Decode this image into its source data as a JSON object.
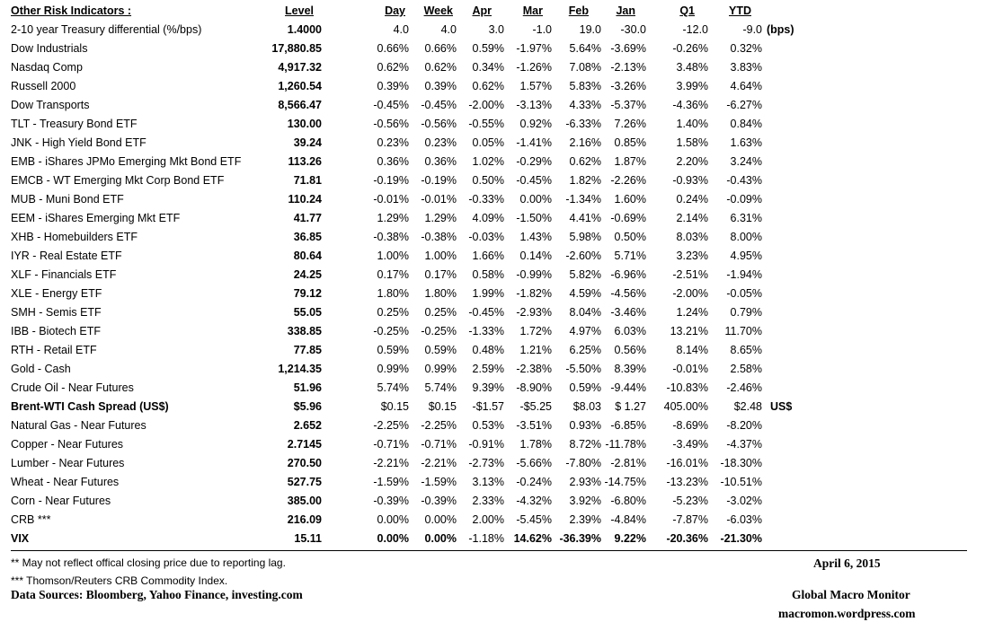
{
  "header": {
    "title": "Other Risk Indicators :",
    "columns": [
      "Level",
      "Day",
      "Week",
      "Apr",
      "Mar",
      "Feb",
      "Jan",
      "Q1",
      "YTD"
    ]
  },
  "rows": [
    {
      "label": "2-10 year Treasury differential (%/bps)",
      "values": [
        "1.4000",
        "4.0",
        "4.0",
        "3.0",
        "-1.0",
        "19.0",
        "-30.0",
        "-12.0",
        "-9.0"
      ],
      "unit": "(bps)"
    },
    {
      "label": "Dow Industrials",
      "values": [
        "17,880.85",
        "0.66%",
        "0.66%",
        "0.59%",
        "-1.97%",
        "5.64%",
        "-3.69%",
        "-0.26%",
        "0.32%"
      ]
    },
    {
      "label": "Nasdaq Comp",
      "values": [
        "4,917.32",
        "0.62%",
        "0.62%",
        "0.34%",
        "-1.26%",
        "7.08%",
        "-2.13%",
        "3.48%",
        "3.83%"
      ]
    },
    {
      "label": "Russell 2000",
      "values": [
        "1,260.54",
        "0.39%",
        "0.39%",
        "0.62%",
        "1.57%",
        "5.83%",
        "-3.26%",
        "3.99%",
        "4.64%"
      ]
    },
    {
      "label": "Dow Transports",
      "values": [
        "8,566.47",
        "-0.45%",
        "-0.45%",
        "-2.00%",
        "-3.13%",
        "4.33%",
        "-5.37%",
        "-4.36%",
        "-6.27%"
      ]
    },
    {
      "label": "TLT - Treasury Bond ETF",
      "values": [
        "130.00",
        "-0.56%",
        "-0.56%",
        "-0.55%",
        "0.92%",
        "-6.33%",
        "7.26%",
        "1.40%",
        "0.84%"
      ]
    },
    {
      "label": "JNK - High Yield Bond ETF",
      "values": [
        "39.24",
        "0.23%",
        "0.23%",
        "0.05%",
        "-1.41%",
        "2.16%",
        "0.85%",
        "1.58%",
        "1.63%"
      ]
    },
    {
      "label": "EMB - iShares JPMo Emerging Mkt Bond ETF",
      "values": [
        "113.26",
        "0.36%",
        "0.36%",
        "1.02%",
        "-0.29%",
        "0.62%",
        "1.87%",
        "2.20%",
        "3.24%"
      ]
    },
    {
      "label": "EMCB - WT Emerging Mkt Corp Bond ETF",
      "values": [
        "71.81",
        "-0.19%",
        "-0.19%",
        "0.50%",
        "-0.45%",
        "1.82%",
        "-2.26%",
        "-0.93%",
        "-0.43%"
      ]
    },
    {
      "label": "MUB - Muni Bond ETF",
      "values": [
        "110.24",
        "-0.01%",
        "-0.01%",
        "-0.33%",
        "0.00%",
        "-1.34%",
        "1.60%",
        "0.24%",
        "-0.09%"
      ]
    },
    {
      "label": "EEM - iShares Emerging Mkt ETF",
      "values": [
        "41.77",
        "1.29%",
        "1.29%",
        "4.09%",
        "-1.50%",
        "4.41%",
        "-0.69%",
        "2.14%",
        "6.31%"
      ]
    },
    {
      "label": "XHB - Homebuilders ETF",
      "values": [
        "36.85",
        "-0.38%",
        "-0.38%",
        "-0.03%",
        "1.43%",
        "5.98%",
        "0.50%",
        "8.03%",
        "8.00%"
      ]
    },
    {
      "label": "IYR - Real Estate ETF",
      "values": [
        "80.64",
        "1.00%",
        "1.00%",
        "1.66%",
        "0.14%",
        "-2.60%",
        "5.71%",
        "3.23%",
        "4.95%"
      ]
    },
    {
      "label": "XLF - Financials ETF",
      "values": [
        "24.25",
        "0.17%",
        "0.17%",
        "0.58%",
        "-0.99%",
        "5.82%",
        "-6.96%",
        "-2.51%",
        "-1.94%"
      ]
    },
    {
      "label": "XLE - Energy ETF",
      "values": [
        "79.12",
        "1.80%",
        "1.80%",
        "1.99%",
        "-1.82%",
        "4.59%",
        "-4.56%",
        "-2.00%",
        "-0.05%"
      ]
    },
    {
      "label": "SMH - Semis ETF",
      "values": [
        "55.05",
        "0.25%",
        "0.25%",
        "-0.45%",
        "-2.93%",
        "8.04%",
        "-3.46%",
        "1.24%",
        "0.79%"
      ]
    },
    {
      "label": "IBB - Biotech ETF",
      "values": [
        "338.85",
        "-0.25%",
        "-0.25%",
        "-1.33%",
        "1.72%",
        "4.97%",
        "6.03%",
        "13.21%",
        "11.70%"
      ]
    },
    {
      "label": "RTH - Retail ETF",
      "values": [
        "77.85",
        "0.59%",
        "0.59%",
        "0.48%",
        "1.21%",
        "6.25%",
        "0.56%",
        "8.14%",
        "8.65%"
      ]
    },
    {
      "label": "Gold - Cash",
      "values": [
        "1,214.35",
        "0.99%",
        "0.99%",
        "2.59%",
        "-2.38%",
        "-5.50%",
        "8.39%",
        "-0.01%",
        "2.58%"
      ]
    },
    {
      "label": "Crude Oil - Near Futures",
      "values": [
        "51.96",
        "5.74%",
        "5.74%",
        "9.39%",
        "-8.90%",
        "0.59%",
        "-9.44%",
        "-10.83%",
        "-2.46%"
      ]
    },
    {
      "label": "Brent-WTI Cash Spread (US$)",
      "values": [
        "$5.96",
        "$0.15",
        "$0.15",
        "-$1.57",
        "-$5.25",
        "$8.03",
        "$ 1.27",
        "405.00%",
        "$2.48"
      ],
      "unit": "US$"
    },
    {
      "label": "Natural Gas - Near Futures",
      "values": [
        "2.652",
        "-2.25%",
        "-2.25%",
        "0.53%",
        "-3.51%",
        "0.93%",
        "-6.85%",
        "-8.69%",
        "-8.20%"
      ]
    },
    {
      "label": "Copper - Near Futures",
      "values": [
        "2.7145",
        "-0.71%",
        "-0.71%",
        "-0.91%",
        "1.78%",
        "8.72%",
        "-11.78%",
        "-3.49%",
        "-4.37%"
      ]
    },
    {
      "label": "Lumber - Near Futures",
      "values": [
        "270.50",
        "-2.21%",
        "-2.21%",
        "-2.73%",
        "-5.66%",
        "-7.80%",
        "-2.81%",
        "-16.01%",
        "-18.30%"
      ]
    },
    {
      "label": "Wheat - Near Futures",
      "values": [
        "527.75",
        "-1.59%",
        "-1.59%",
        "3.13%",
        "-0.24%",
        "2.93%",
        "-14.75%",
        "-13.23%",
        "-10.51%"
      ]
    },
    {
      "label": "Corn - Near Futures",
      "values": [
        "385.00",
        "-0.39%",
        "-0.39%",
        "2.33%",
        "-4.32%",
        "3.92%",
        "-6.80%",
        "-5.23%",
        "-3.02%"
      ]
    },
    {
      "label": "CRB ***",
      "values": [
        "216.09",
        "0.00%",
        "0.00%",
        "2.00%",
        "-5.45%",
        "2.39%",
        "-4.84%",
        "-7.87%",
        "-6.03%"
      ]
    },
    {
      "label": "VIX",
      "values": [
        "15.11",
        "0.00%",
        "0.00%",
        "-1.18%",
        "14.62%",
        "-36.39%",
        "9.22%",
        "-20.36%",
        "-21.30%"
      ]
    }
  ],
  "footer": {
    "note1": "**  May not reflect offical closing price due to reporting lag.",
    "note2": "*** Thomson/Reuters CRB Commodity Index.",
    "sources": "Data Sources:  Bloomberg,  Yahoo Finance, investing.com",
    "date": "April 6, 2015",
    "brand": "Global Macro Monitor",
    "site": "macromon.wordpress.com"
  }
}
